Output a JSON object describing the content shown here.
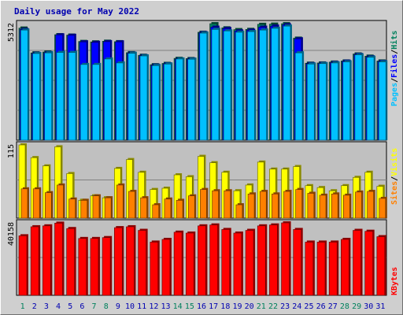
{
  "chart_data": {
    "type": "bar",
    "title": "Daily usage for May 2022",
    "x": [
      "1",
      "2",
      "3",
      "4",
      "5",
      "6",
      "7",
      "8",
      "9",
      "10",
      "11",
      "12",
      "13",
      "14",
      "15",
      "16",
      "17",
      "18",
      "19",
      "20",
      "21",
      "22",
      "23",
      "24",
      "25",
      "26",
      "27",
      "28",
      "29",
      "30",
      "31"
    ],
    "weekend_days": [
      "1",
      "7",
      "8",
      "14",
      "15",
      "21",
      "22",
      "28",
      "29"
    ],
    "panels": [
      {
        "id": "hits_files_pages",
        "ytick_label": "5312",
        "ymax": 5312,
        "series": [
          {
            "name": "Hits",
            "color": "#00805c",
            "values": [
              5110,
              3980,
              4020,
              4810,
              4790,
              4500,
              4480,
              4510,
              4490,
              3990,
              3870,
              3440,
              3500,
              3730,
              3720,
              4920,
              5310,
              5120,
              5040,
              5050,
              5280,
              5290,
              5310,
              4650,
              3510,
              3520,
              3560,
              3610,
              3930,
              3830,
              3610
            ]
          },
          {
            "name": "Files",
            "color": "#0000ff",
            "values": [
              5050,
              3960,
              3990,
              4800,
              4780,
              4480,
              4460,
              4490,
              4480,
              3970,
              3850,
              3420,
              3480,
              3700,
              3700,
              4900,
              5150,
              5090,
              4980,
              5010,
              5150,
              5200,
              5260,
              4620,
              3490,
              3500,
              3540,
              3600,
              3910,
              3800,
              3590
            ]
          },
          {
            "name": "Pages",
            "color": "#00c0ff",
            "values": [
              5020,
              3950,
              3980,
              4000,
              4000,
              3450,
              3450,
              3700,
              3520,
              3960,
              3840,
              3400,
              3470,
              3700,
              3690,
              4880,
              5050,
              4980,
              4920,
              4950,
              5020,
              5100,
              5200,
              3980,
              3470,
              3490,
              3520,
              3570,
              3890,
              3780,
              3570
            ]
          }
        ]
      },
      {
        "id": "visits_sites",
        "ytick_label": "115",
        "ymax": 115,
        "series": [
          {
            "name": "Visits",
            "color": "#ffff00",
            "values": [
              115,
              95,
              82,
              112,
              70,
              28,
              35,
              32,
              78,
              92,
              72,
              45,
              47,
              68,
              65,
              97,
              87,
              72,
              43,
              52,
              88,
              77,
              77,
              81,
              51,
              48,
              43,
              51,
              64,
              72,
              50
            ]
          },
          {
            "name": "Sites",
            "color": "#ff8000",
            "values": [
              46,
              46,
              40,
              52,
              30,
              28,
              35,
              32,
              52,
              42,
              32,
              21,
              30,
              28,
              35,
              45,
              43,
              43,
              21,
              38,
              42,
              38,
              42,
              45,
              39,
              36,
              38,
              36,
              41,
              42,
              31
            ]
          }
        ]
      },
      {
        "id": "kbytes",
        "ytick_label": "40158",
        "ymax": 40158,
        "series": [
          {
            "name": "KBytes",
            "color": "#ff0000",
            "values": [
              33000,
              38000,
              38500,
              40000,
              37000,
              31500,
              31500,
              32000,
              37500,
              38000,
              36000,
              29500,
              31000,
              35000,
              34500,
              38500,
              39000,
              36500,
              34500,
              36000,
              38500,
              39000,
              40158,
              36500,
              29500,
              29500,
              29500,
              31000,
              36000,
              35500,
              32500
            ]
          }
        ]
      }
    ],
    "legend": {
      "top": [
        "Pages",
        "/",
        "Files",
        "/",
        "Hits"
      ],
      "middle": [
        "Sites",
        "/",
        "Visits"
      ],
      "bottom": [
        "KBytes"
      ]
    },
    "grid": true
  },
  "colors": {
    "background": "#cfcfcf",
    "plot_background": "#c0c0c0",
    "title": "#0000b0",
    "weekday_label": "#0000b0",
    "weekend_label": "#00805c"
  }
}
